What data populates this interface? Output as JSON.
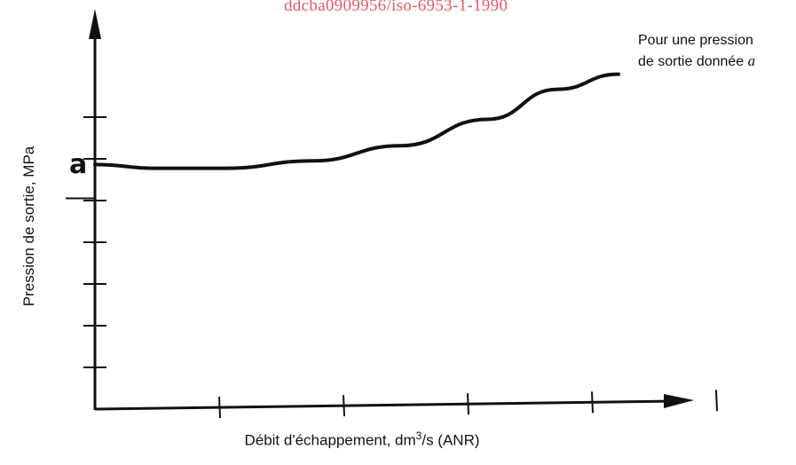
{
  "watermark": "ddcba0909956/iso-6953-1-1990",
  "chart_data": {
    "type": "line",
    "title": "",
    "xlabel": "Débit d'échappement, dm",
    "xlabel_sup": "3",
    "xlabel_tail": "/s (ANR)",
    "ylabel": "Pression de sortie, MPa",
    "x_ticks": 5,
    "y_ticks": 7,
    "xlim": [
      0,
      6
    ],
    "ylim": [
      0,
      10
    ],
    "reference_level": {
      "label": "a",
      "y": 5.6
    },
    "annotation": {
      "line1": "Pour une pression",
      "line2": "de sortie donnée ",
      "italic": "a"
    },
    "series": [
      {
        "x": [
          0,
          0.7,
          1.5,
          2.5,
          3.5,
          4.5,
          5.3,
          6.0
        ],
        "y": [
          6.5,
          6.4,
          6.4,
          6.6,
          7.0,
          7.7,
          8.5,
          8.9
        ]
      }
    ]
  }
}
